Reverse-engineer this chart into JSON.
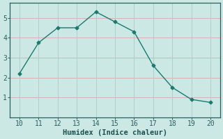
{
  "x": [
    10,
    11,
    12,
    13,
    14,
    15,
    16,
    17,
    18,
    19,
    20
  ],
  "y": [
    2.2,
    3.75,
    4.5,
    4.5,
    5.3,
    4.8,
    4.3,
    2.6,
    1.5,
    0.9,
    0.75
  ],
  "line_color": "#1a7a6e",
  "marker": "D",
  "marker_size": 2.5,
  "xlabel": "Humidex (Indice chaleur)",
  "xlim": [
    9.5,
    20.5
  ],
  "ylim": [
    0.0,
    5.75
  ],
  "xticks": [
    10,
    11,
    12,
    13,
    14,
    15,
    16,
    17,
    18,
    19,
    20
  ],
  "yticks": [
    1,
    2,
    3,
    4,
    5
  ],
  "background_color": "#cce8e4",
  "grid_color_h": "#d9b0b0",
  "grid_color_v": "#b0cece",
  "spine_color": "#2a6060",
  "tick_color": "#2a6060",
  "font_color": "#1a5050",
  "xlabel_fontsize": 7.5,
  "tick_fontsize": 7
}
